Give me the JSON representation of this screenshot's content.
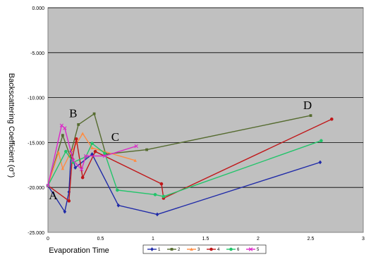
{
  "chart_data": {
    "type": "line",
    "xlabel": "Evaporation Time",
    "ylabel": "Backscattering Coefficient (σ°)",
    "xlim": [
      0,
      3
    ],
    "ylim": [
      -25,
      0
    ],
    "x_ticks": [
      "0",
      "0.5",
      "1",
      "1.5",
      "2",
      "2.5",
      "3"
    ],
    "y_ticks": [
      "0.000",
      "-5.000",
      "-10.000",
      "-15.000",
      "-20.000",
      "-25.000"
    ],
    "grid": "horizontal",
    "plot_background": "#c0c0c0",
    "legend_position": "bottom",
    "annotations": [
      {
        "text": "A",
        "x": 0.05,
        "y": -21.3
      },
      {
        "text": "B",
        "x": 0.24,
        "y": -12.2
      },
      {
        "text": "C",
        "x": 0.64,
        "y": -14.8
      },
      {
        "text": "D",
        "x": 2.47,
        "y": -11.3
      }
    ],
    "series": [
      {
        "name": "1",
        "color": "#1f2aa8",
        "marker": "diamond",
        "x": [
          0.0,
          0.16,
          0.2,
          0.22,
          0.26,
          0.42,
          0.67,
          1.04,
          2.59
        ],
        "y": [
          -19.8,
          -22.7,
          -20.5,
          -16.0,
          -17.8,
          -16.3,
          -22.0,
          -23.0,
          -17.2
        ]
      },
      {
        "name": "2",
        "color": "#556b2f",
        "marker": "square",
        "x": [
          0.0,
          0.14,
          0.21,
          0.29,
          0.44,
          0.55,
          0.94,
          2.5
        ],
        "y": [
          -19.8,
          -14.2,
          -16.5,
          -13.0,
          -11.8,
          -16.3,
          -15.8,
          -12.0
        ]
      },
      {
        "name": "3",
        "color": "#ff8c42",
        "marker": "triangle",
        "x": [
          0.0,
          0.1,
          0.14,
          0.2,
          0.33,
          0.42,
          0.83
        ],
        "y": [
          -19.8,
          -16.1,
          -17.9,
          -16.5,
          -14.0,
          -15.6,
          -17.0
        ]
      },
      {
        "name": "4",
        "color": "#c0181a",
        "marker": "circle",
        "x": [
          0.0,
          0.2,
          0.23,
          0.27,
          0.33,
          0.45,
          1.08,
          1.1,
          2.7
        ],
        "y": [
          -19.8,
          -21.5,
          -16.8,
          -14.6,
          -18.9,
          -16.0,
          -19.6,
          -21.2,
          -12.4
        ]
      },
      {
        "name": "6",
        "color": "#22c46a",
        "marker": "circle",
        "x": [
          0.0,
          0.17,
          0.24,
          0.36,
          0.42,
          0.54,
          0.66,
          1.02,
          1.1,
          2.6
        ],
        "y": [
          -19.8,
          -16.0,
          -17.2,
          -16.6,
          -15.1,
          -16.2,
          -20.3,
          -20.8,
          -21.0,
          -14.8
        ]
      },
      {
        "name": "5",
        "color": "#dc28c8",
        "marker": "x",
        "x": [
          0.0,
          0.13,
          0.16,
          0.24,
          0.32,
          0.36,
          0.54,
          0.84
        ],
        "y": [
          -19.8,
          -13.1,
          -13.4,
          -17.0,
          -18.0,
          -16.5,
          -16.5,
          -15.4
        ]
      }
    ]
  }
}
